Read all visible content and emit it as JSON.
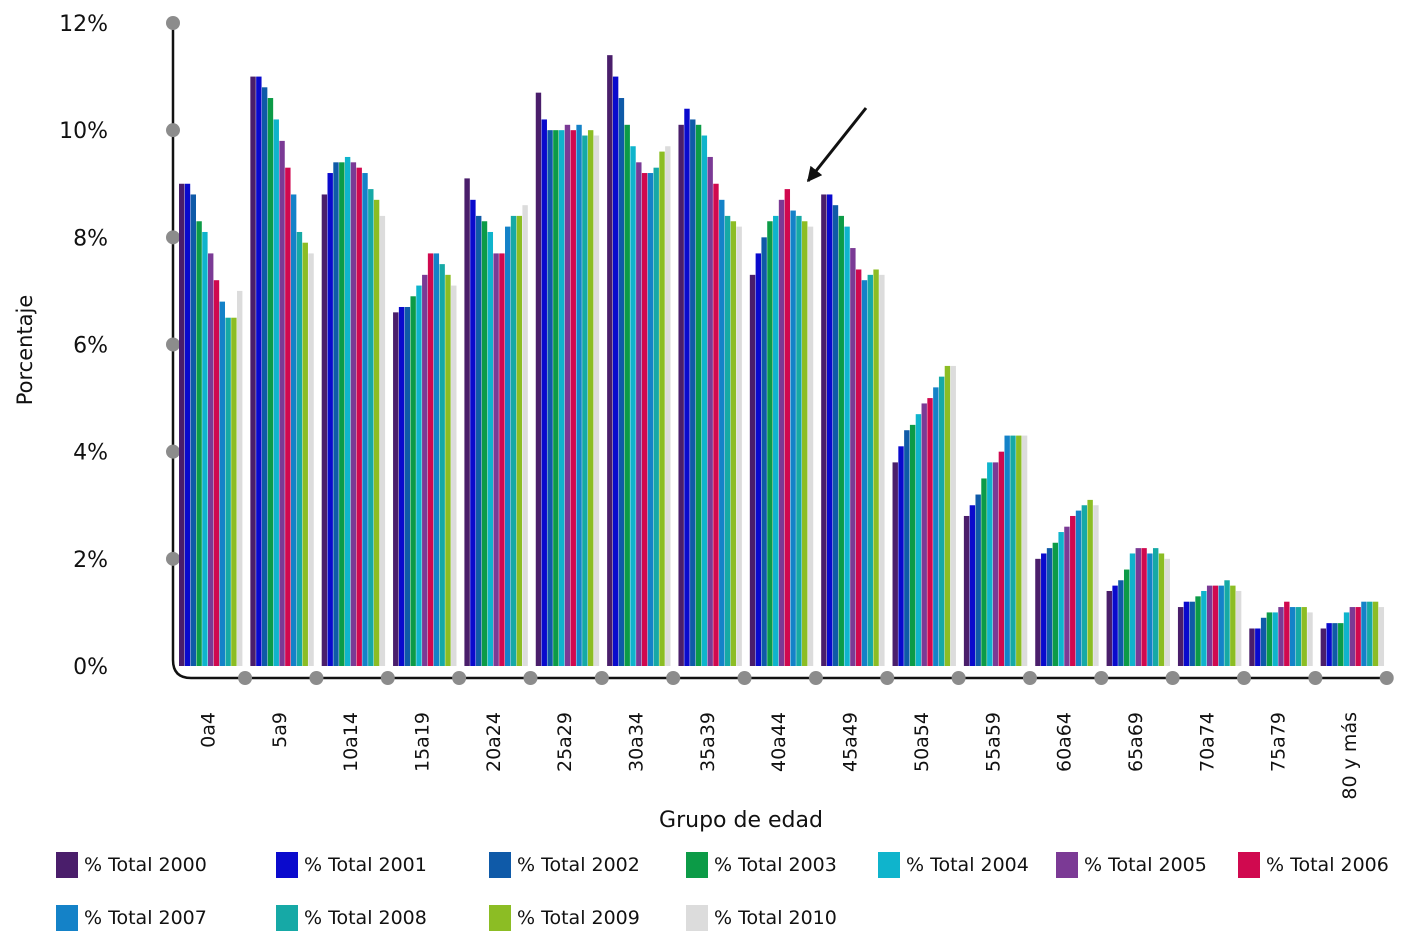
{
  "chart_data": {
    "type": "bar",
    "title": "",
    "xlabel": "Grupo de edad",
    "ylabel": "Porcentaje",
    "ylim": [
      0,
      12
    ],
    "yticks": [
      "0%",
      "2%",
      "4%",
      "6%",
      "8%",
      "10%",
      "12%"
    ],
    "grid": false,
    "legend": "bottom",
    "categories": [
      "0a4",
      "5a9",
      "10a14",
      "15a19",
      "20a24",
      "25a29",
      "30a34",
      "35a39",
      "40a44",
      "45a49",
      "50a54",
      "55a59",
      "60a64",
      "65a69",
      "70a74",
      "75a79",
      "80 y más"
    ],
    "series": [
      {
        "name": "% Total 2000",
        "color": "#4a1e6b",
        "values": [
          9.0,
          11.0,
          8.8,
          6.6,
          9.1,
          10.7,
          11.4,
          10.1,
          7.3,
          8.8,
          3.8,
          2.8,
          2.0,
          1.4,
          1.1,
          0.7,
          0.7
        ]
      },
      {
        "name": "% Total 2001",
        "color": "#0a0acd",
        "values": [
          9.0,
          11.0,
          9.2,
          6.7,
          8.7,
          10.2,
          11.0,
          10.4,
          7.7,
          8.8,
          4.1,
          3.0,
          2.1,
          1.5,
          1.2,
          0.7,
          0.8
        ]
      },
      {
        "name": "% Total 2002",
        "color": "#0f5aa8",
        "values": [
          8.8,
          10.8,
          9.4,
          6.7,
          8.4,
          10.0,
          10.6,
          10.2,
          8.0,
          8.6,
          4.4,
          3.2,
          2.2,
          1.6,
          1.2,
          0.9,
          0.8
        ]
      },
      {
        "name": "% Total 2003",
        "color": "#0c9b47",
        "values": [
          8.3,
          10.6,
          9.4,
          6.9,
          8.3,
          10.0,
          10.1,
          10.1,
          8.3,
          8.4,
          4.5,
          3.5,
          2.3,
          1.8,
          1.3,
          1.0,
          0.8
        ]
      },
      {
        "name": "% Total 2004",
        "color": "#0fb4cc",
        "values": [
          8.1,
          10.2,
          9.5,
          7.1,
          8.1,
          10.0,
          9.7,
          9.9,
          8.4,
          8.2,
          4.7,
          3.8,
          2.5,
          2.1,
          1.4,
          1.0,
          1.0
        ]
      },
      {
        "name": "% Total 2005",
        "color": "#7b3a95",
        "values": [
          7.7,
          9.8,
          9.4,
          7.3,
          7.7,
          10.1,
          9.4,
          9.5,
          8.7,
          7.8,
          4.9,
          3.8,
          2.6,
          2.2,
          1.5,
          1.1,
          1.1
        ]
      },
      {
        "name": "% Total 2006",
        "color": "#d0094f",
        "values": [
          7.2,
          9.3,
          9.3,
          7.7,
          7.7,
          10.0,
          9.2,
          9.0,
          8.9,
          7.4,
          5.0,
          4.0,
          2.8,
          2.2,
          1.5,
          1.2,
          1.1
        ]
      },
      {
        "name": "% Total 2007",
        "color": "#1482c8",
        "values": [
          6.8,
          8.8,
          9.2,
          7.7,
          8.2,
          10.1,
          9.2,
          8.7,
          8.5,
          7.2,
          5.2,
          4.3,
          2.9,
          2.1,
          1.5,
          1.1,
          1.2
        ]
      },
      {
        "name": "% Total 2008",
        "color": "#16a9a6",
        "values": [
          6.5,
          8.1,
          8.9,
          7.5,
          8.4,
          9.9,
          9.3,
          8.4,
          8.4,
          7.3,
          5.4,
          4.3,
          3.0,
          2.2,
          1.6,
          1.1,
          1.2
        ]
      },
      {
        "name": "% Total 2009",
        "color": "#8cbd24",
        "values": [
          6.5,
          7.9,
          8.7,
          7.3,
          8.4,
          10.0,
          9.6,
          8.3,
          8.3,
          7.4,
          5.6,
          4.3,
          3.1,
          2.1,
          1.5,
          1.1,
          1.2
        ]
      },
      {
        "name": "% Total 2010",
        "color": "#dcdcdc",
        "values": [
          7.0,
          7.7,
          8.4,
          7.1,
          8.6,
          9.9,
          9.7,
          8.2,
          8.2,
          7.3,
          5.6,
          4.3,
          3.0,
          2.0,
          1.4,
          1.0,
          1.1
        ]
      }
    ],
    "annotations": [
      {
        "type": "arrow",
        "category": "40a44",
        "series": "% Total 2006"
      }
    ]
  }
}
